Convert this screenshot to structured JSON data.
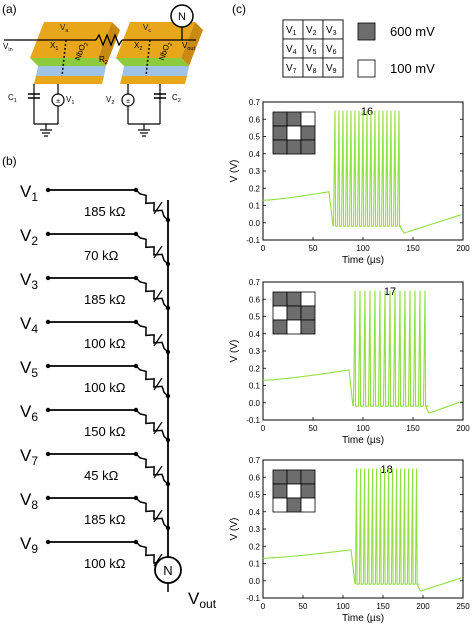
{
  "panel_labels": {
    "a": "(a)",
    "b": "(b)",
    "c": "(c)"
  },
  "device": {
    "vin_label": "V",
    "vin_sub": "in",
    "vout_label": "V",
    "vout_sub": "out",
    "va_label": "V",
    "va_sub": "a",
    "vc_label": "V",
    "vc_sub": "c",
    "x1_label": "X",
    "x1_sub": "1",
    "x2_label": "X",
    "x2_sub": "2",
    "r2_label": "R",
    "r2_sub": "2",
    "nbo_label": "NbO",
    "nbo_sub": "2",
    "neuron_label": "N",
    "c1_label": "C",
    "c1_sub": "1",
    "c2_label": "C",
    "c2_sub": "2",
    "v1_label": "V",
    "v1_sub": "1",
    "v2_label": "V",
    "v2_sub": "2"
  },
  "network": {
    "inputs": [
      {
        "label": "V",
        "sub": "1",
        "resistor": "185 kΩ"
      },
      {
        "label": "V",
        "sub": "2",
        "resistor": "70 kΩ"
      },
      {
        "label": "V",
        "sub": "3",
        "resistor": "185 kΩ"
      },
      {
        "label": "V",
        "sub": "4",
        "resistor": "100 kΩ"
      },
      {
        "label": "V",
        "sub": "5",
        "resistor": "100 kΩ"
      },
      {
        "label": "V",
        "sub": "6",
        "resistor": "150 kΩ"
      },
      {
        "label": "V",
        "sub": "7",
        "resistor": "45 kΩ"
      },
      {
        "label": "V",
        "sub": "8",
        "resistor": "185 kΩ"
      },
      {
        "label": "V",
        "sub": "9",
        "resistor": "100 kΩ"
      }
    ],
    "neuron_label": "N",
    "vout_label": "V",
    "vout_sub": "out"
  },
  "legend": {
    "grid_labels": [
      "V1",
      "V2",
      "V3",
      "V4",
      "V5",
      "V6",
      "V7",
      "V8",
      "V9"
    ],
    "high_label": "600 mV",
    "low_label": "100 mV",
    "high_color": "#6d6d6d",
    "low_color": "#ffffff"
  },
  "colors": {
    "trace": "#90e040",
    "gold": "#e8a61a",
    "green_layer": "#8ccc3c",
    "blue_layer": "#9fc3e6"
  },
  "chart_data": [
    {
      "type": "line",
      "annotation": "16",
      "pattern": [
        1,
        1,
        0,
        1,
        0,
        1,
        1,
        1,
        1
      ],
      "xlabel": "Time (µs)",
      "ylabel": "V (V)",
      "xlim": [
        0,
        200
      ],
      "ylim": [
        -0.1,
        0.7
      ],
      "xticks": [
        0,
        50,
        100,
        150,
        200
      ],
      "yticks": [
        -0.1,
        0.0,
        0.1,
        0.2,
        0.3,
        0.4,
        0.5,
        0.6,
        0.7
      ],
      "baseline": {
        "start_v": 0.13,
        "end_t": 66,
        "end_v": 0.18
      },
      "spike_times": [
        72,
        76,
        80,
        84,
        88,
        92,
        96,
        100,
        104,
        108,
        112,
        116,
        120,
        124,
        128,
        132,
        136
      ],
      "spike_peak": 0.65,
      "spike_trough": -0.02,
      "recovery": {
        "min_t": 141,
        "min_v": -0.06,
        "end_v": 0.05
      }
    },
    {
      "type": "line",
      "annotation": "17",
      "pattern": [
        1,
        1,
        0,
        0,
        1,
        1,
        1,
        0,
        1
      ],
      "xlabel": "Time (µs)",
      "ylabel": "V (V)",
      "xlim": [
        0,
        200
      ],
      "ylim": [
        -0.1,
        0.7
      ],
      "xticks": [
        0,
        50,
        100,
        150,
        200
      ],
      "yticks": [
        -0.1,
        0.0,
        0.1,
        0.2,
        0.3,
        0.4,
        0.5,
        0.6,
        0.7
      ],
      "baseline": {
        "start_v": 0.13,
        "end_t": 86,
        "end_v": 0.19
      },
      "spike_times": [
        92,
        97,
        102,
        107,
        112,
        117,
        122,
        127,
        132,
        137,
        142,
        147,
        152,
        157,
        162
      ],
      "spike_peak": 0.65,
      "spike_trough": -0.02,
      "recovery": {
        "min_t": 166,
        "min_v": -0.06,
        "end_v": 0.01
      }
    },
    {
      "type": "line",
      "annotation": "18",
      "pattern": [
        1,
        1,
        1,
        1,
        0,
        1,
        0,
        1,
        0
      ],
      "xlabel": "Time (µs)",
      "ylabel": "V (V)",
      "xlim": [
        0,
        250
      ],
      "ylim": [
        -0.1,
        0.7
      ],
      "xticks": [
        0,
        50,
        100,
        150,
        200,
        250
      ],
      "yticks": [
        -0.1,
        0.0,
        0.1,
        0.2,
        0.3,
        0.4,
        0.5,
        0.6,
        0.7
      ],
      "baseline": {
        "start_v": 0.13,
        "end_t": 111,
        "end_v": 0.18
      },
      "spike_times": [
        117,
        122,
        127,
        132,
        137,
        142,
        147,
        152,
        157,
        162,
        167,
        172,
        177,
        182,
        187,
        192
      ],
      "spike_peak": 0.65,
      "spike_trough": -0.02,
      "recovery": {
        "min_t": 197,
        "min_v": -0.06,
        "end_v": 0.02
      }
    }
  ]
}
